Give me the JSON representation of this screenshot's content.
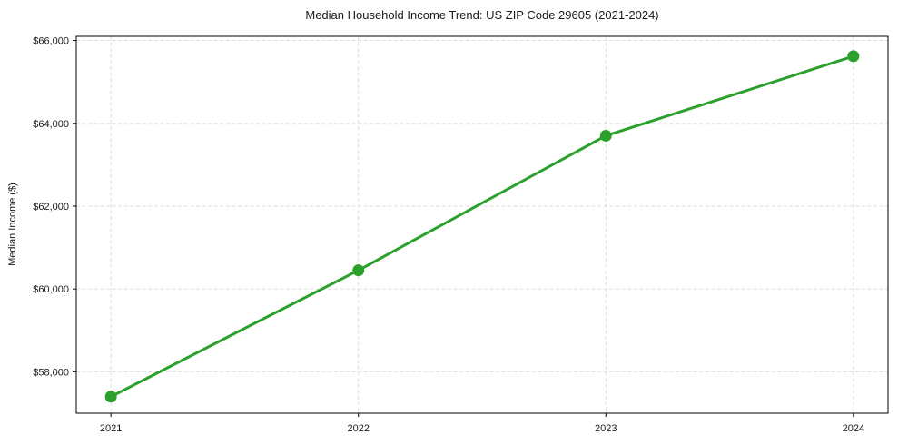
{
  "chart_data": {
    "type": "line",
    "title": "Median Household Income Trend: US ZIP Code 29605 (2021-2024)",
    "xlabel": "",
    "ylabel": "Median Income ($)",
    "x": [
      2021,
      2022,
      2023,
      2024
    ],
    "series": [
      {
        "name": "Median Household Income",
        "values": [
          57400,
          60450,
          63700,
          65620
        ]
      }
    ],
    "x_tick_labels": [
      "2021",
      "2022",
      "2023",
      "2024"
    ],
    "y_ticks": [
      58000,
      60000,
      62000,
      64000,
      66000
    ],
    "y_tick_labels": [
      "$58,000",
      "$60,000",
      "$62,000",
      "$64,000",
      "$66,000"
    ],
    "xlim": [
      2020.86,
      2024.14
    ],
    "ylim": [
      57000,
      66100
    ],
    "grid": true,
    "grid_style": "dashed",
    "legend_position": "none",
    "colors": {
      "line": "#2ca02c",
      "marker": "#2ca02c",
      "grid": "#d9d9d9",
      "spine": "#000000",
      "text": "#1a1a1a",
      "background": "#ffffff"
    }
  }
}
